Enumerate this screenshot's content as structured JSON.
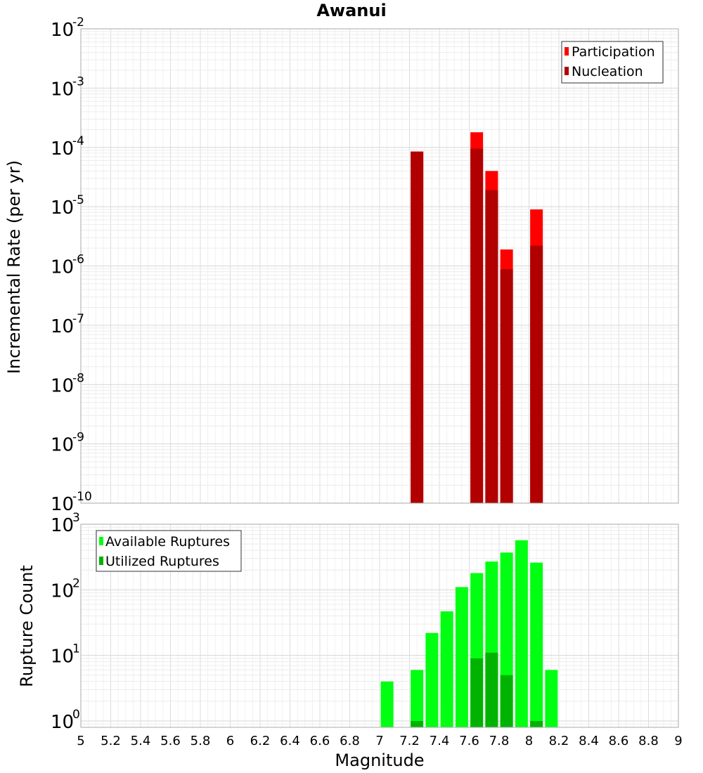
{
  "chart_data": [
    {
      "type": "bar",
      "title": "Awanui",
      "xlabel": "Magnitude",
      "ylabel": "Incremental Rate (per yr)",
      "yscale": "log",
      "ylim": [
        1e-10,
        0.01
      ],
      "ytick_labels": [
        {
          "base": "10",
          "exp": "-10"
        },
        {
          "base": "10",
          "exp": "-9"
        },
        {
          "base": "10",
          "exp": "-8"
        },
        {
          "base": "10",
          "exp": "-7"
        },
        {
          "base": "10",
          "exp": "-6"
        },
        {
          "base": "10",
          "exp": "-5"
        },
        {
          "base": "10",
          "exp": "-4"
        },
        {
          "base": "10",
          "exp": "-3"
        },
        {
          "base": "10",
          "exp": "-2"
        }
      ],
      "ytick_values": [
        1e-10,
        1e-09,
        1e-08,
        1e-07,
        1e-06,
        1e-05,
        0.0001,
        0.001,
        0.01
      ],
      "grid": true,
      "legend_position": "top-right",
      "series": [
        {
          "name": "Participation",
          "color": "#ff0000",
          "points": [
            {
              "x": 7.25,
              "y": 8.5e-05
            },
            {
              "x": 7.65,
              "y": 0.00018
            },
            {
              "x": 7.75,
              "y": 4e-05
            },
            {
              "x": 7.85,
              "y": 1.9e-06
            },
            {
              "x": 8.05,
              "y": 9e-06
            }
          ]
        },
        {
          "name": "Nucleation",
          "color": "#b00000",
          "points": [
            {
              "x": 7.25,
              "y": 8.5e-05
            },
            {
              "x": 7.65,
              "y": 9.5e-05
            },
            {
              "x": 7.75,
              "y": 1.9e-05
            },
            {
              "x": 7.85,
              "y": 8.8e-07
            },
            {
              "x": 8.05,
              "y": 2.2e-06
            }
          ]
        }
      ]
    },
    {
      "type": "bar",
      "xlabel": "Magnitude",
      "ylabel": "Rupture Count",
      "yscale": "log",
      "ylim": [
        0.8,
        1000
      ],
      "ytick_labels": [
        {
          "base": "10",
          "exp": "0"
        },
        {
          "base": "10",
          "exp": "1"
        },
        {
          "base": "10",
          "exp": "2"
        },
        {
          "base": "10",
          "exp": "3"
        }
      ],
      "ytick_values": [
        1,
        10,
        100,
        1000
      ],
      "xlim": [
        5,
        9
      ],
      "xtick_labels": [
        "5",
        "5.2",
        "5.4",
        "5.6",
        "5.8",
        "6",
        "6.2",
        "6.4",
        "6.6",
        "6.8",
        "7",
        "7.2",
        "7.4",
        "7.6",
        "7.8",
        "8",
        "8.2",
        "8.4",
        "8.6",
        "8.8",
        "9"
      ],
      "xtick_values": [
        5,
        5.2,
        5.4,
        5.6,
        5.8,
        6,
        6.2,
        6.4,
        6.6,
        6.8,
        7,
        7.2,
        7.4,
        7.6,
        7.8,
        8,
        8.2,
        8.4,
        8.6,
        8.8,
        9
      ],
      "grid": true,
      "legend_position": "top-left",
      "series": [
        {
          "name": "Available Ruptures",
          "color": "#00ff11",
          "points": [
            {
              "x": 7.05,
              "y": 4
            },
            {
              "x": 7.25,
              "y": 6
            },
            {
              "x": 7.35,
              "y": 22
            },
            {
              "x": 7.45,
              "y": 47
            },
            {
              "x": 7.55,
              "y": 110
            },
            {
              "x": 7.65,
              "y": 180
            },
            {
              "x": 7.75,
              "y": 270
            },
            {
              "x": 7.85,
              "y": 370
            },
            {
              "x": 7.95,
              "y": 570
            },
            {
              "x": 8.05,
              "y": 260
            },
            {
              "x": 8.15,
              "y": 6
            }
          ]
        },
        {
          "name": "Utilized Ruptures",
          "color": "#00b300",
          "points": [
            {
              "x": 7.25,
              "y": 1
            },
            {
              "x": 7.65,
              "y": 9
            },
            {
              "x": 7.75,
              "y": 11
            },
            {
              "x": 7.85,
              "y": 5
            },
            {
              "x": 8.05,
              "y": 1
            }
          ]
        }
      ]
    }
  ]
}
